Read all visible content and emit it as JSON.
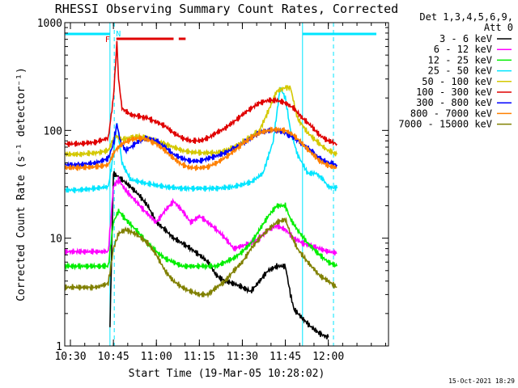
{
  "page": {
    "title": "RHESSI Observing Summary Count Rates, Corrected",
    "footer_date": "15-Oct-2021 18:29"
  },
  "colors": {
    "background": "#ffffff",
    "axis": "#000000",
    "flag_cyan": "#00e5ff",
    "flag_red": "#e00000"
  },
  "chart_data": {
    "type": "line",
    "title": "RHESSI Observing Summary Count Rates, Corrected",
    "xlabel": "Start Time (19-Mar-05 10:28:02)",
    "ylabel": "Corrected Count Rate (s⁻¹ detector⁻¹)",
    "y_scale": "log",
    "ylim": [
      1,
      1000
    ],
    "xlim_minutes": [
      10.467,
      12.35
    ],
    "x_unit": "hours (UT)",
    "x_ticks": [
      {
        "value": 10.5,
        "label": "10:30"
      },
      {
        "value": 10.75,
        "label": "10:45"
      },
      {
        "value": 11.0,
        "label": "11:00"
      },
      {
        "value": 11.25,
        "label": "11:15"
      },
      {
        "value": 11.5,
        "label": "11:30"
      },
      {
        "value": 11.75,
        "label": "11:45"
      },
      {
        "value": 12.0,
        "label": "12:00"
      }
    ],
    "y_ticks": [
      {
        "value": 1,
        "label": "1"
      },
      {
        "value": 10,
        "label": "10"
      },
      {
        "value": 100,
        "label": "100"
      },
      {
        "value": 1000,
        "label": "1000"
      }
    ],
    "legend_header": [
      "Det 1,3,4,5,6,9,",
      "Att 0"
    ],
    "legend_position": "right",
    "flags": [
      {
        "label": "N",
        "color": "#00e5ff",
        "x_start": 10.73,
        "x_end": 10.82
      },
      {
        "label": "F",
        "color": "#e00000",
        "x_start": 10.76,
        "x_end": 11.17
      }
    ],
    "series": [
      {
        "name": "3 - 6 keV",
        "color": "#000000",
        "x": [
          10.73,
          10.75,
          10.77,
          10.8,
          10.85,
          10.9,
          10.95,
          11.0,
          11.05,
          11.1,
          11.15,
          11.2,
          11.25,
          11.3,
          11.35,
          11.4,
          11.45,
          11.5,
          11.55,
          11.6,
          11.65,
          11.7,
          11.75,
          11.78,
          11.8,
          11.85,
          11.9,
          11.95,
          12.0
        ],
        "y": [
          1.5,
          40,
          38,
          35,
          30,
          25,
          20,
          14,
          12,
          10,
          9,
          8,
          7,
          6,
          4.5,
          4,
          3.8,
          3.5,
          3.2,
          4,
          5,
          5.5,
          5.5,
          3,
          2.2,
          1.8,
          1.5,
          1.3,
          1.2
        ]
      },
      {
        "name": "6 - 12 keV",
        "color": "#ff00ff",
        "x": [
          10.47,
          10.55,
          10.65,
          10.72,
          10.75,
          10.78,
          10.82,
          10.88,
          10.93,
          11.0,
          11.05,
          11.1,
          11.15,
          11.2,
          11.25,
          11.3,
          11.35,
          11.4,
          11.45,
          11.5,
          11.55,
          11.6,
          11.65,
          11.7,
          11.75,
          11.8,
          11.85,
          11.9,
          11.95,
          12.0,
          12.05
        ],
        "y": [
          7.5,
          7.5,
          7.5,
          7.5,
          30,
          35,
          28,
          22,
          18,
          14,
          18,
          22,
          18,
          14,
          16,
          14,
          12,
          10,
          8,
          8.5,
          9,
          10,
          12,
          13,
          12,
          10,
          9,
          8.5,
          8,
          7.5,
          7.3
        ]
      },
      {
        "name": "12 - 25 keV",
        "color": "#00ee00",
        "x": [
          10.47,
          10.55,
          10.65,
          10.72,
          10.75,
          10.78,
          10.82,
          10.88,
          10.95,
          11.0,
          11.05,
          11.1,
          11.15,
          11.2,
          11.25,
          11.3,
          11.35,
          11.4,
          11.45,
          11.5,
          11.55,
          11.6,
          11.65,
          11.7,
          11.75,
          11.78,
          11.82,
          11.88,
          11.95,
          12.0,
          12.05
        ],
        "y": [
          5.5,
          5.5,
          5.5,
          5.5,
          14,
          18,
          15,
          12,
          9,
          7.5,
          6.5,
          6,
          5.5,
          5.5,
          5.5,
          5.5,
          5.5,
          6,
          6.5,
          7.5,
          9,
          12,
          16,
          20,
          20,
          15,
          12,
          9,
          7,
          6,
          5.5
        ]
      },
      {
        "name": "25 - 50 keV",
        "color": "#00e5ff",
        "x": [
          10.47,
          10.55,
          10.65,
          10.72,
          10.75,
          10.77,
          10.8,
          10.85,
          10.95,
          11.05,
          11.15,
          11.25,
          11.35,
          11.45,
          11.55,
          11.62,
          11.68,
          11.72,
          11.75,
          11.78,
          11.82,
          11.88,
          11.93,
          11.97,
          12.0,
          12.05
        ],
        "y": [
          28,
          28,
          29,
          30,
          60,
          120,
          50,
          35,
          32,
          30,
          29,
          29,
          29,
          30,
          33,
          40,
          80,
          250,
          200,
          100,
          60,
          40,
          40,
          35,
          30,
          29
        ]
      },
      {
        "name": "50 - 100 keV",
        "color": "#d4c800",
        "x": [
          10.47,
          10.55,
          10.65,
          10.72,
          10.76,
          10.8,
          10.85,
          10.9,
          10.95,
          11.0,
          11.05,
          11.1,
          11.15,
          11.2,
          11.25,
          11.3,
          11.35,
          11.4,
          11.45,
          11.5,
          11.55,
          11.6,
          11.65,
          11.7,
          11.75,
          11.78,
          11.82,
          11.88,
          11.93,
          11.97,
          12.0,
          12.05
        ],
        "y": [
          60,
          60,
          62,
          65,
          90,
          82,
          86,
          88,
          85,
          80,
          75,
          70,
          65,
          63,
          62,
          62,
          62,
          65,
          70,
          78,
          88,
          100,
          150,
          230,
          250,
          250,
          130,
          95,
          80,
          70,
          65,
          60
        ]
      },
      {
        "name": "100 - 300 keV",
        "color": "#e00000",
        "x": [
          10.47,
          10.55,
          10.65,
          10.72,
          10.75,
          10.77,
          10.78,
          10.8,
          10.85,
          10.9,
          10.95,
          11.0,
          11.05,
          11.1,
          11.15,
          11.2,
          11.25,
          11.3,
          11.35,
          11.4,
          11.45,
          11.5,
          11.55,
          11.6,
          11.65,
          11.7,
          11.75,
          11.8,
          11.85,
          11.9,
          11.95,
          12.0,
          12.05
        ],
        "y": [
          75,
          75,
          78,
          85,
          200,
          650,
          300,
          160,
          140,
          135,
          130,
          120,
          110,
          95,
          85,
          80,
          80,
          85,
          95,
          105,
          120,
          140,
          160,
          180,
          190,
          190,
          180,
          160,
          130,
          110,
          90,
          80,
          75
        ]
      },
      {
        "name": "300 - 800 keV",
        "color": "#0000ff",
        "x": [
          10.47,
          10.55,
          10.65,
          10.72,
          10.75,
          10.77,
          10.79,
          10.82,
          10.85,
          10.9,
          10.95,
          11.0,
          11.05,
          11.1,
          11.15,
          11.2,
          11.25,
          11.3,
          11.35,
          11.4,
          11.45,
          11.5,
          11.55,
          11.6,
          11.65,
          11.7,
          11.75,
          11.8,
          11.85,
          11.9,
          11.95,
          12.0,
          12.05
        ],
        "y": [
          48,
          48,
          50,
          55,
          75,
          115,
          80,
          65,
          70,
          80,
          85,
          80,
          70,
          60,
          55,
          52,
          52,
          55,
          58,
          62,
          68,
          75,
          85,
          95,
          100,
          100,
          95,
          85,
          75,
          65,
          55,
          50,
          48
        ]
      },
      {
        "name": "800 - 7000 keV",
        "color": "#ff8000",
        "x": [
          10.47,
          10.55,
          10.65,
          10.72,
          10.76,
          10.8,
          10.85,
          10.9,
          10.95,
          11.0,
          11.05,
          11.1,
          11.15,
          11.2,
          11.25,
          11.3,
          11.35,
          11.4,
          11.45,
          11.5,
          11.55,
          11.6,
          11.65,
          11.7,
          11.75,
          11.8,
          11.85,
          11.9,
          11.95,
          12.0,
          12.05
        ],
        "y": [
          45,
          45,
          46,
          48,
          65,
          75,
          82,
          85,
          82,
          75,
          65,
          55,
          48,
          45,
          45,
          46,
          50,
          56,
          64,
          75,
          85,
          95,
          100,
          102,
          100,
          90,
          75,
          62,
          52,
          47,
          45
        ]
      },
      {
        "name": "7000 - 15000 keV",
        "color": "#808000",
        "x": [
          10.47,
          10.55,
          10.65,
          10.72,
          10.75,
          10.78,
          10.82,
          10.88,
          10.95,
          11.0,
          11.05,
          11.1,
          11.15,
          11.2,
          11.25,
          11.3,
          11.35,
          11.4,
          11.45,
          11.5,
          11.55,
          11.6,
          11.65,
          11.7,
          11.75,
          11.78,
          11.82,
          11.88,
          11.95,
          12.0,
          12.05
        ],
        "y": [
          3.5,
          3.5,
          3.5,
          3.8,
          8,
          11,
          12,
          11,
          9,
          7,
          5,
          4,
          3.5,
          3.2,
          3,
          3,
          3.5,
          4,
          5,
          6,
          8,
          10,
          12,
          14,
          15,
          11,
          8,
          6,
          4.5,
          4,
          3.5
        ]
      }
    ]
  }
}
